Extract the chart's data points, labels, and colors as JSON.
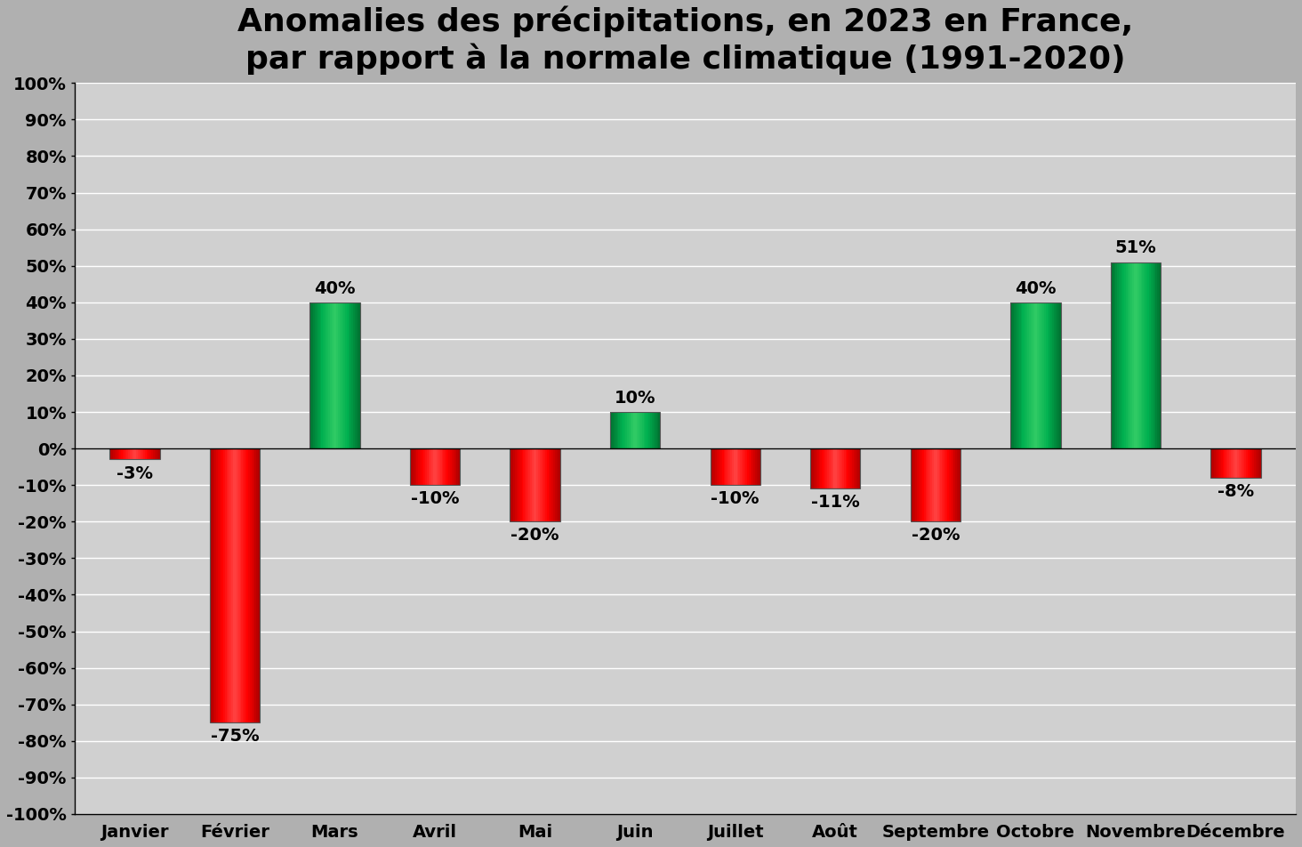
{
  "title_line1": "Anomalies des précipitations, en 2023 en France,",
  "title_line2": "par rapport à la normale climatique (1991-2020)",
  "categories": [
    "Janvier",
    "Février",
    "Mars",
    "Avril",
    "Mai",
    "Juin",
    "Juillet",
    "Août",
    "Septembre",
    "Octobre",
    "Novembre",
    "Décembre"
  ],
  "values": [
    -3,
    -75,
    40,
    -10,
    -20,
    10,
    -10,
    -11,
    -20,
    40,
    51,
    -8
  ],
  "bar_color_positive": "#00b050",
  "bar_color_negative": "#ff0000",
  "bar_color_positive_light": "#33cc66",
  "bar_color_negative_light": "#ff4444",
  "background_color": "#b0b0b0",
  "plot_bg_color": "#d0d0d0",
  "ylim": [
    -100,
    100
  ],
  "yticks": [
    -100,
    -90,
    -80,
    -70,
    -60,
    -50,
    -40,
    -30,
    -20,
    -10,
    0,
    10,
    20,
    30,
    40,
    50,
    60,
    70,
    80,
    90,
    100
  ],
  "ytick_labels": [
    "-100%",
    "-90%",
    "-80%",
    "-70%",
    "-60%",
    "-50%",
    "-40%",
    "-30%",
    "-20%",
    "-10%",
    "0%",
    "10%",
    "20%",
    "30%",
    "40%",
    "50%",
    "60%",
    "70%",
    "80%",
    "90%",
    "100%"
  ],
  "title_fontsize": 26,
  "tick_fontsize": 14,
  "value_fontsize": 14,
  "bar_width": 0.5
}
